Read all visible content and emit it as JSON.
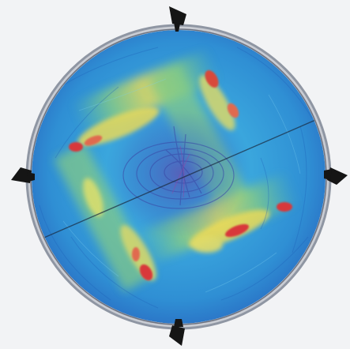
{
  "scene": {
    "background_color": "#f2f3f5",
    "rim_color": "#8f96a3",
    "disc_base_color": "#2d8fd6",
    "mount_color": "#151515",
    "hot_color": "#d8383a",
    "warm_color": "#e7d95a",
    "mid_color": "#6fc58a"
  },
  "markers": {
    "icon": "fixture-mount-icon",
    "count": 4
  }
}
